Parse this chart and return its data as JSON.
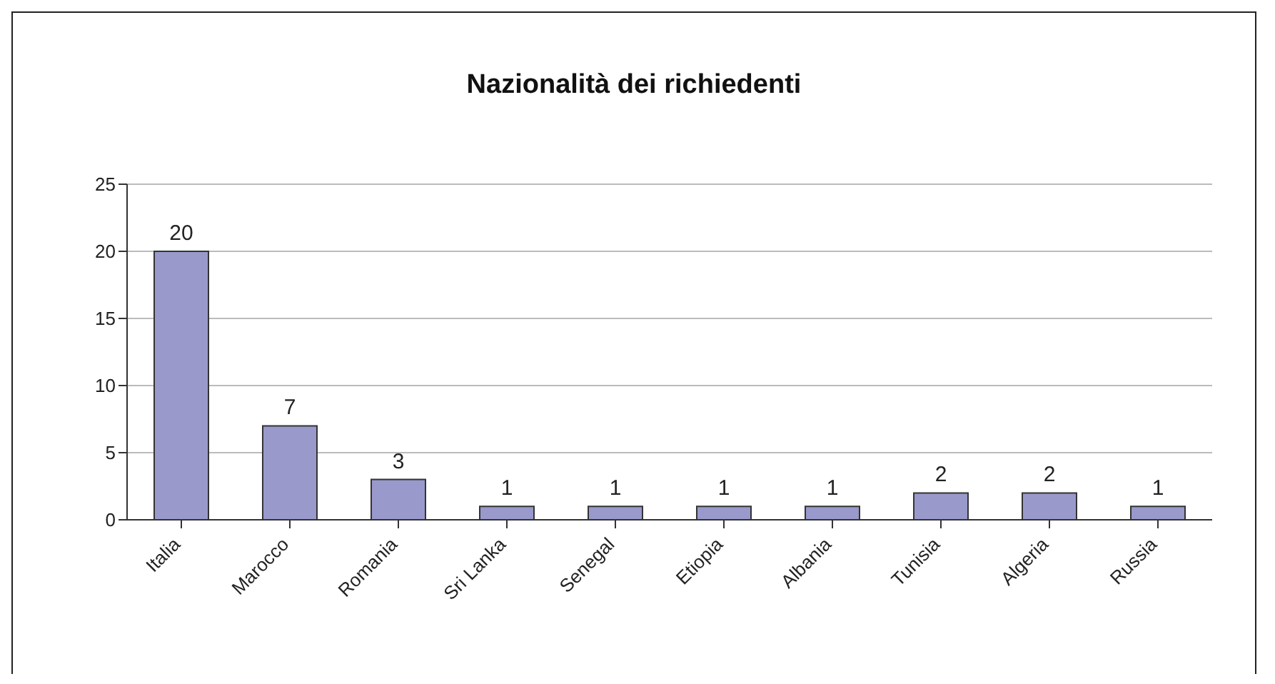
{
  "chart_data": {
    "type": "bar",
    "title": "Nazionalità dei richiedenti",
    "categories": [
      "Italia",
      "Marocco",
      "Romania",
      "Sri Lanka",
      "Senegal",
      "Etiopia",
      "Albania",
      "Tunisia",
      "Algeria",
      "Russia"
    ],
    "values": [
      20,
      7,
      3,
      1,
      1,
      1,
      1,
      2,
      2,
      1
    ],
    "color": "#9999cc",
    "ylim": [
      0,
      25
    ],
    "yticks": [
      0,
      5,
      10,
      15,
      20,
      25
    ],
    "grid": "y",
    "data_labels": true
  }
}
